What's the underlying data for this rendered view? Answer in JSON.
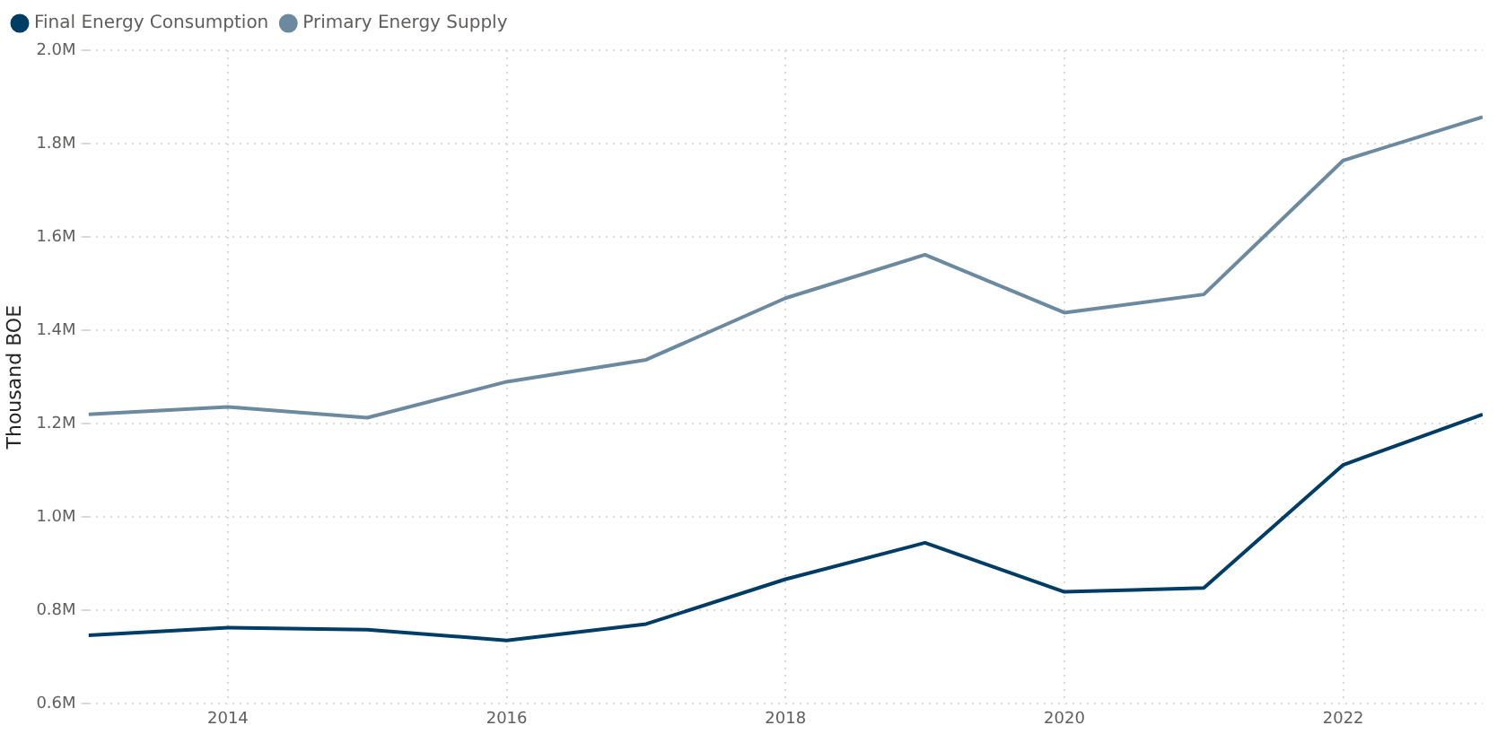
{
  "chart_data": {
    "type": "line",
    "ylabel": "Thousand BOE",
    "x": [
      2013,
      2014,
      2015,
      2016,
      2017,
      2018,
      2019,
      2020,
      2021,
      2022,
      2023
    ],
    "series": [
      {
        "name": "Final Energy Consumption",
        "color": "#003d66",
        "values": [
          747000,
          763000,
          759000,
          736000,
          771000,
          867000,
          945000,
          840000,
          848000,
          1112000,
          1220000
        ]
      },
      {
        "name": "Primary Energy Supply",
        "color": "#6b8aa0",
        "values": [
          1220000,
          1236000,
          1213000,
          1290000,
          1337000,
          1469000,
          1562000,
          1438000,
          1477000,
          1764000,
          1857000
        ]
      }
    ],
    "xlim": [
      2013,
      2023
    ],
    "xticks": [
      2014,
      2016,
      2018,
      2020,
      2022
    ],
    "ylim": [
      600000,
      2000000
    ],
    "yticks": [
      {
        "value": 600000,
        "label": "0.6M"
      },
      {
        "value": 800000,
        "label": "0.8M"
      },
      {
        "value": 1000000,
        "label": "1.0M"
      },
      {
        "value": 1200000,
        "label": "1.2M"
      },
      {
        "value": 1400000,
        "label": "1.4M"
      },
      {
        "value": 1600000,
        "label": "1.6M"
      },
      {
        "value": 1800000,
        "label": "1.8M"
      },
      {
        "value": 2000000,
        "label": "2.0M"
      }
    ],
    "grid": true,
    "legend": "top left",
    "marker": "none",
    "line_style": "solid"
  }
}
